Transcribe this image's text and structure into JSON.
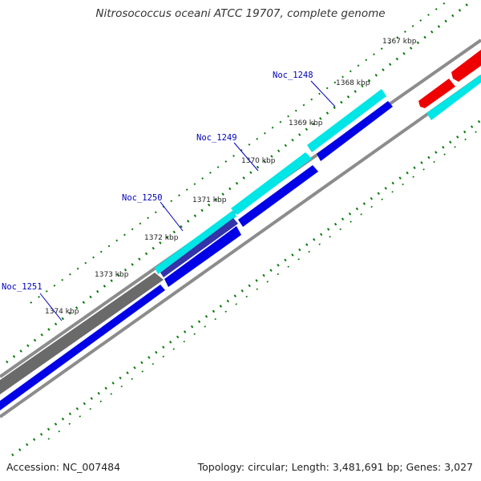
{
  "title": "Nitrosococcus oceani ATCC 19707, complete genome",
  "footer": {
    "accession": "Accession: NC_007484",
    "summary": "Topology: circular; Length: 3,481,691 bp; Genes: 3,027"
  },
  "kbp_labels": [
    "1367 kbp",
    "1368 kbp",
    "1369 kbp",
    "1370 kbp",
    "1371 kbp",
    "1372 kbp",
    "1373 kbp",
    "1374 kbp"
  ],
  "genes": [
    {
      "name": "Noc_1248"
    },
    {
      "name": "Noc_1249"
    },
    {
      "name": "Noc_1250"
    },
    {
      "name": "Noc_1251"
    }
  ],
  "colors": {
    "backbone": "#8c8c8c",
    "forward_cds": "#00e5e5",
    "reverse_cds": "#0000e6",
    "gray_block": "#6a6a6a",
    "red_feature": "#ee0000",
    "tick_green": "#0a7a0a",
    "gene_label": "#0000bb"
  }
}
